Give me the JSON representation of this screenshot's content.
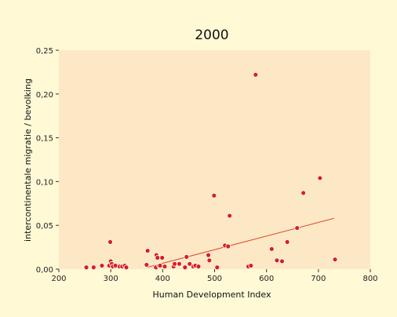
{
  "chart_data": {
    "type": "scatter",
    "title": "2000",
    "xlabel": "Human Development Index",
    "ylabel": "intercontinentale migratie / bevolking",
    "xlim": [
      200,
      800
    ],
    "ylim": [
      0,
      0.25
    ],
    "x_ticks": [
      "200",
      "300",
      "400",
      "500",
      "600",
      "700",
      "800"
    ],
    "y_ticks": [
      "0,00",
      "0,05",
      "0,10",
      "0,15",
      "0,20",
      "0,25"
    ],
    "grid": false,
    "colors": {
      "background": "#fff9d6",
      "plot_area": "#fde8c5",
      "points": "#d91f1f",
      "trend": "#d94a2a"
    },
    "points": [
      [
        253,
        0.002
      ],
      [
        267,
        0.002
      ],
      [
        283,
        0.004
      ],
      [
        297,
        0.004
      ],
      [
        299,
        0.031
      ],
      [
        300,
        0.009
      ],
      [
        302,
        0.006
      ],
      [
        304,
        0.003
      ],
      [
        309,
        0.004
      ],
      [
        317,
        0.003
      ],
      [
        322,
        0.003
      ],
      [
        327,
        0.004
      ],
      [
        330,
        0.002
      ],
      [
        369,
        0.005
      ],
      [
        371,
        0.021
      ],
      [
        387,
        0.002
      ],
      [
        388,
        0.016
      ],
      [
        390,
        0.013
      ],
      [
        393,
        0.004
      ],
      [
        395,
        0.004
      ],
      [
        399,
        0.013
      ],
      [
        404,
        0.003
      ],
      [
        421,
        0.003
      ],
      [
        423,
        0.006
      ],
      [
        432,
        0.006
      ],
      [
        443,
        0.002
      ],
      [
        446,
        0.014
      ],
      [
        452,
        0.006
      ],
      [
        459,
        0.003
      ],
      [
        463,
        0.004
      ],
      [
        469,
        0.003
      ],
      [
        488,
        0.016
      ],
      [
        490,
        0.01
      ],
      [
        499,
        0.084
      ],
      [
        505,
        0.002
      ],
      [
        520,
        0.027
      ],
      [
        526,
        0.026
      ],
      [
        529,
        0.061
      ],
      [
        565,
        0.003
      ],
      [
        570,
        0.004
      ],
      [
        579,
        0.222
      ],
      [
        610,
        0.023
      ],
      [
        620,
        0.01
      ],
      [
        630,
        0.009
      ],
      [
        640,
        0.031
      ],
      [
        659,
        0.047
      ],
      [
        671,
        0.087
      ],
      [
        703,
        0.104
      ],
      [
        732,
        0.011
      ]
    ],
    "trendline": {
      "x": [
        370,
        730
      ],
      "y": [
        0.002,
        0.058
      ]
    }
  }
}
